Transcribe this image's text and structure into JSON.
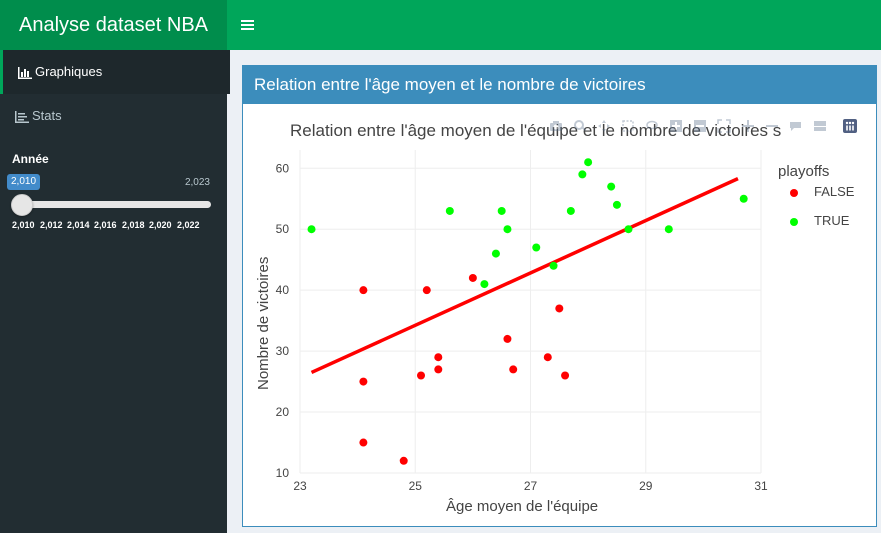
{
  "app": {
    "title": "Analyse dataset NBA"
  },
  "header": {
    "toggle_icon": "hamburger-icon"
  },
  "sidebar": {
    "items": [
      {
        "label": "Graphiques",
        "icon": "bar-chart-icon",
        "active": true
      },
      {
        "label": "Stats",
        "icon": "line-chart-icon",
        "active": false
      }
    ],
    "year_filter": {
      "label": "Année",
      "min_value": "2,010",
      "max_value": "2,023",
      "current_value": "2,010",
      "ticks": [
        "2,010",
        "2,012",
        "2,014",
        "2,016",
        "2,018",
        "2,020",
        "2,022"
      ]
    }
  },
  "box": {
    "title": "Relation entre l'âge moyen et le nombre de victoires"
  },
  "chart_data": {
    "type": "scatter",
    "title": "Relation entre l'âge moyen de l'équipe et le nombre de victoires s",
    "xlabel": "Âge moyen de l'équipe",
    "ylabel": "Nombre de victoires",
    "xlim": [
      23,
      31
    ],
    "ylim": [
      10,
      63
    ],
    "xticks": [
      "23",
      "25",
      "27",
      "29",
      "31"
    ],
    "yticks": [
      "10",
      "20",
      "30",
      "40",
      "50",
      "60"
    ],
    "legend_title": "playoffs",
    "legend_position": "right",
    "grid": true,
    "series": [
      {
        "name": "FALSE",
        "color": "#ff0000",
        "points": [
          [
            24.1,
            40
          ],
          [
            24.1,
            25
          ],
          [
            24.1,
            15
          ],
          [
            24.8,
            12
          ],
          [
            25.1,
            26
          ],
          [
            25.2,
            40
          ],
          [
            25.4,
            29
          ],
          [
            25.4,
            27
          ],
          [
            26.0,
            42
          ],
          [
            26.6,
            32
          ],
          [
            26.7,
            27
          ],
          [
            27.3,
            29
          ],
          [
            27.5,
            37
          ],
          [
            27.6,
            26
          ]
        ]
      },
      {
        "name": "TRUE",
        "color": "#00ff00",
        "points": [
          [
            23.2,
            50
          ],
          [
            25.6,
            53
          ],
          [
            26.2,
            41
          ],
          [
            26.4,
            46
          ],
          [
            26.5,
            53
          ],
          [
            26.6,
            50
          ],
          [
            27.1,
            47
          ],
          [
            27.4,
            44
          ],
          [
            27.7,
            53
          ],
          [
            27.9,
            59
          ],
          [
            28.0,
            61
          ],
          [
            28.4,
            57
          ],
          [
            28.5,
            54
          ],
          [
            28.7,
            50
          ],
          [
            29.4,
            50
          ],
          [
            30.7,
            55
          ]
        ]
      }
    ],
    "trend_line": {
      "color": "#ff0000",
      "points": [
        [
          23.2,
          26.5
        ],
        [
          30.6,
          58.3
        ]
      ]
    }
  }
}
